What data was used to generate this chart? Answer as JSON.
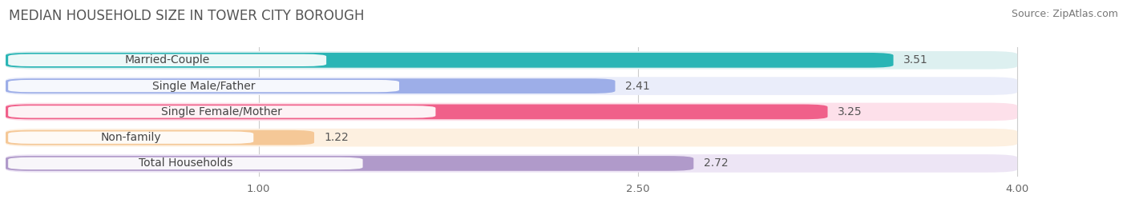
{
  "title": "MEDIAN HOUSEHOLD SIZE IN TOWER CITY BOROUGH",
  "source": "Source: ZipAtlas.com",
  "categories": [
    "Married-Couple",
    "Single Male/Father",
    "Single Female/Mother",
    "Non-family",
    "Total Households"
  ],
  "values": [
    3.51,
    2.41,
    3.25,
    1.22,
    2.72
  ],
  "bar_colors": [
    "#2ab5b5",
    "#9daee8",
    "#f0608a",
    "#f5c897",
    "#b09aca"
  ],
  "bar_bg_colors": [
    "#ddf0f0",
    "#eaedfa",
    "#fde0ea",
    "#fdf0e0",
    "#ede5f5"
  ],
  "xlim_min": 0.0,
  "xlim_max": 4.3,
  "data_min": 0.0,
  "data_max": 4.0,
  "xticks": [
    1.0,
    2.5,
    4.0
  ],
  "title_fontsize": 12,
  "source_fontsize": 9,
  "label_fontsize": 10,
  "value_fontsize": 10,
  "figsize": [
    14.06,
    2.69
  ],
  "dpi": 100
}
